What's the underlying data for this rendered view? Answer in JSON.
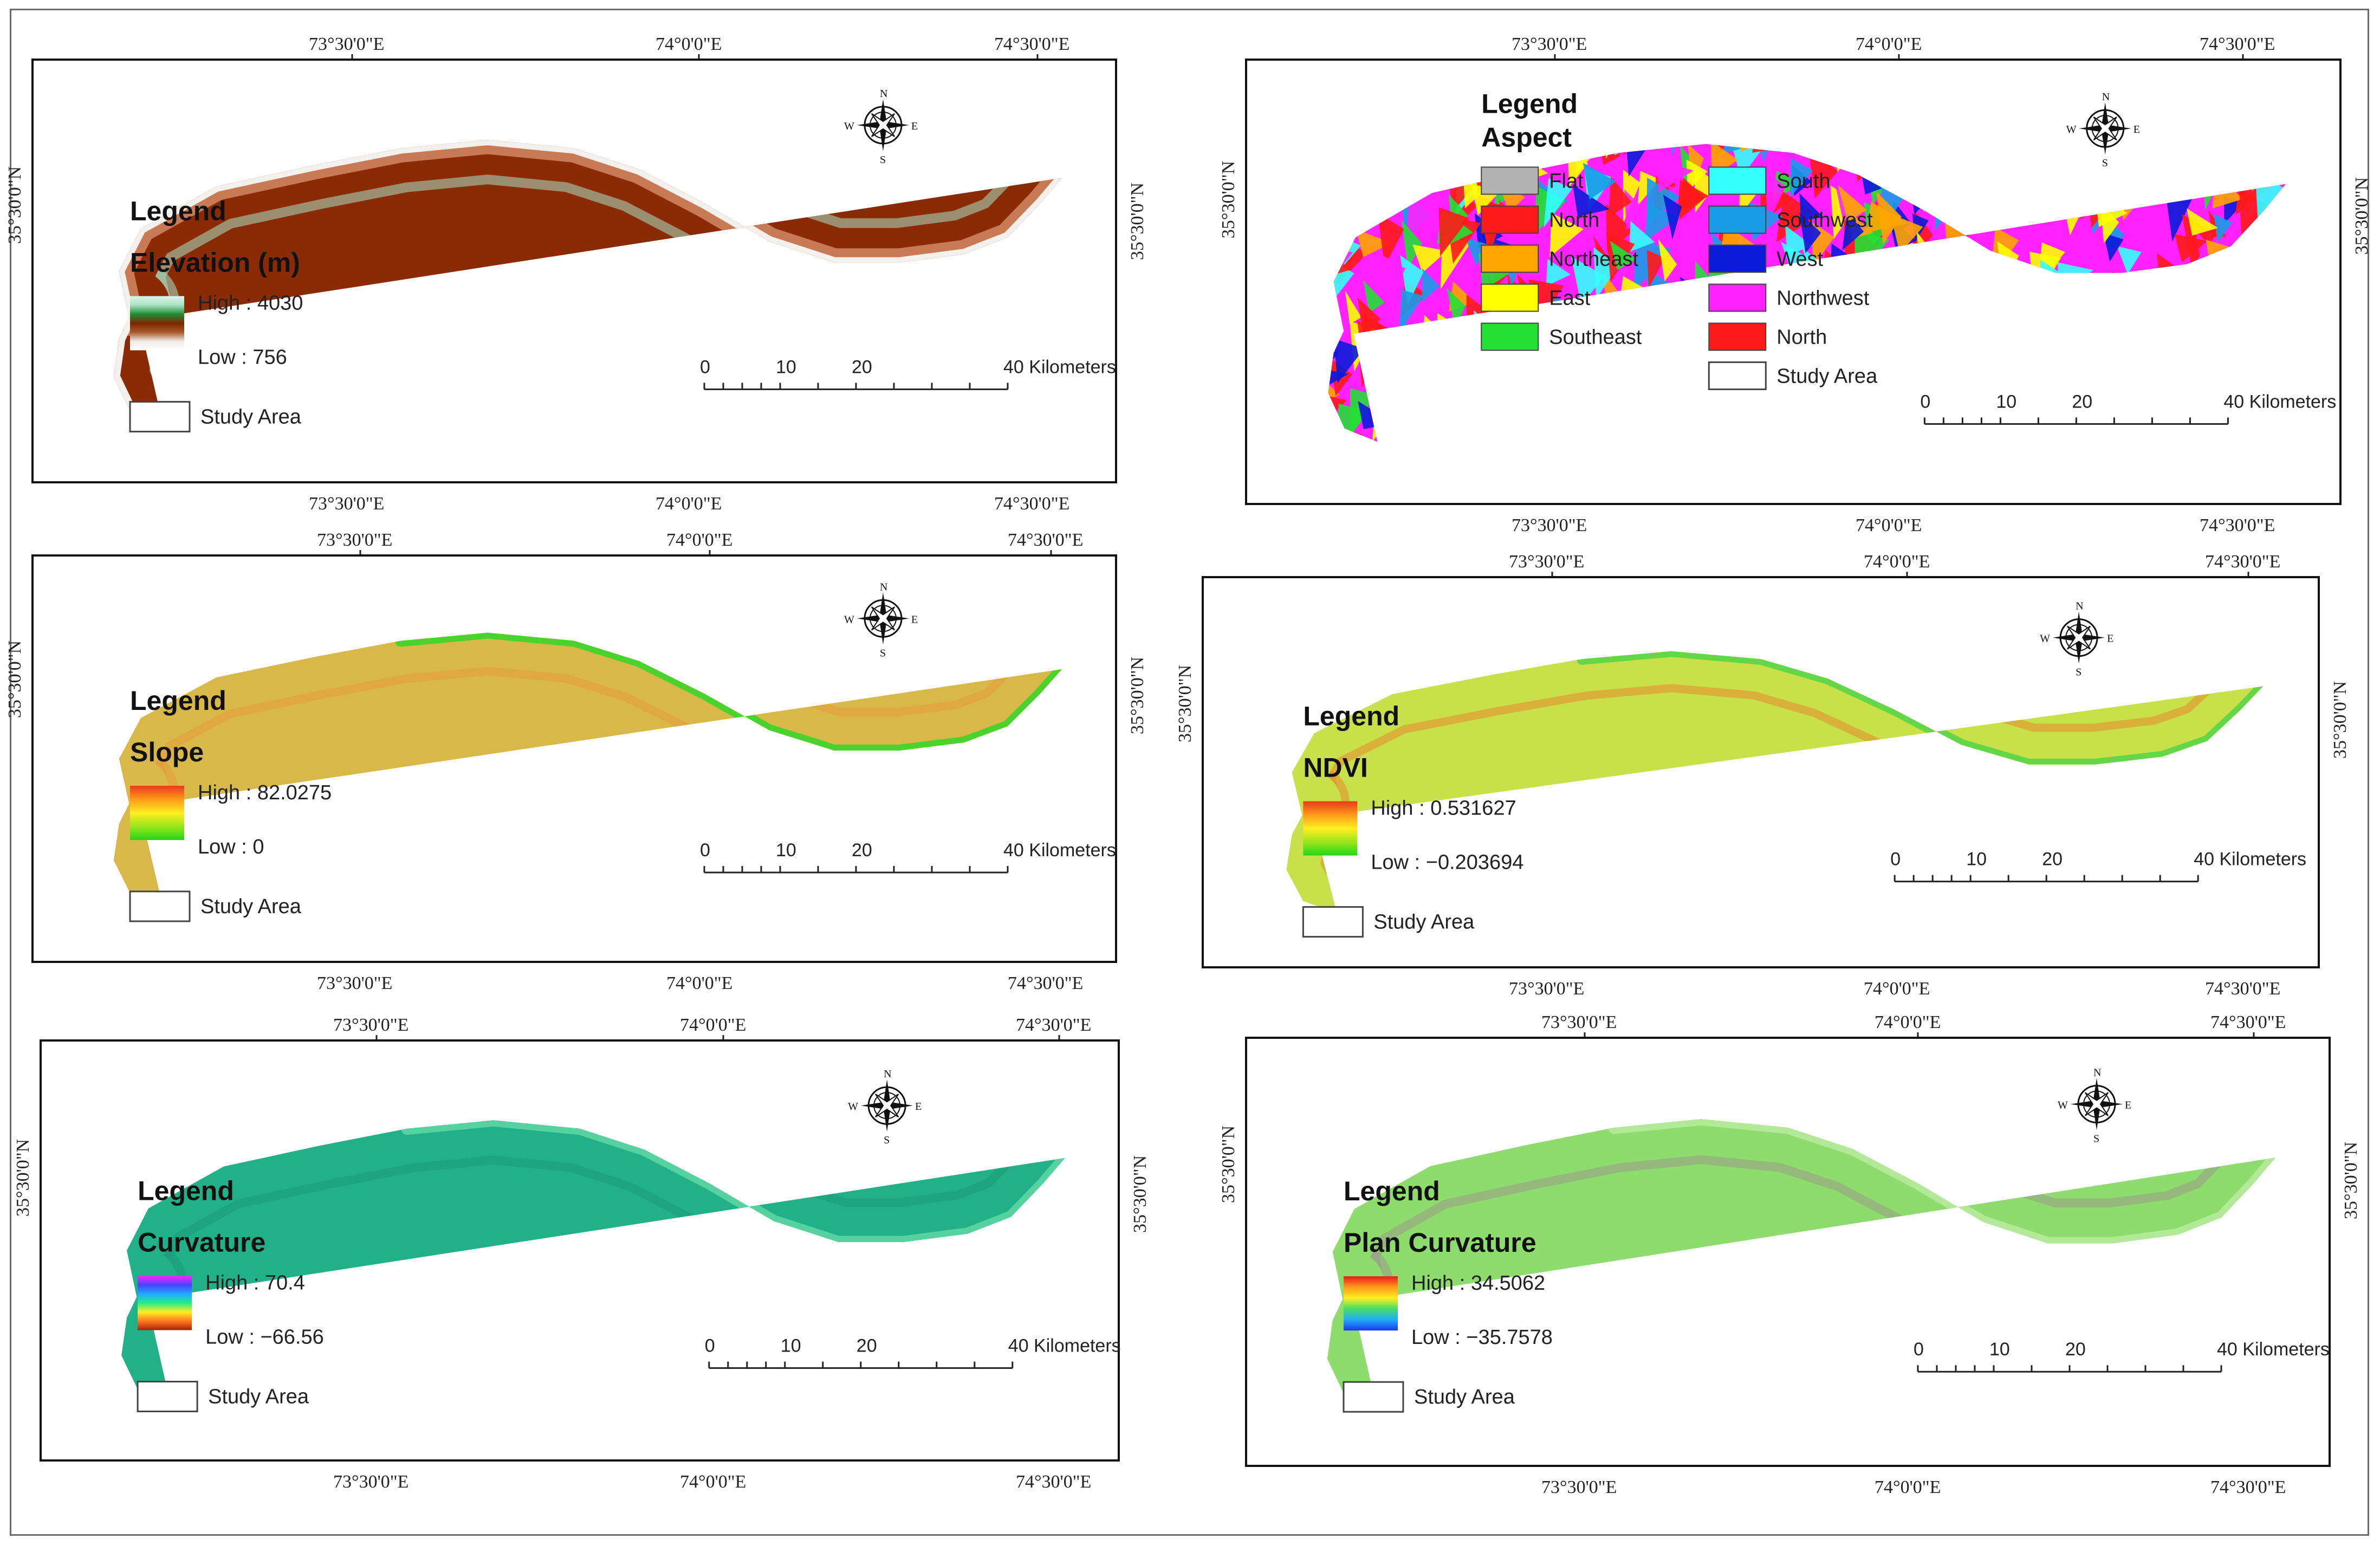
{
  "panels": [
    {
      "id": "elevation",
      "legend_heading": "Legend",
      "layer_name": "Elevation (m)",
      "high_label": "High : 4030",
      "low_label": "Low : 756",
      "study_area_label": "Study Area",
      "ramp_colors": [
        "#dff3ec",
        "#a8e2c4",
        "#1f8c34",
        "#7a2800",
        "#a65a2b",
        "#f0ebe7",
        "#ffffff"
      ],
      "fill": {
        "type": "elevation",
        "base": "#8b2b06",
        "mid": "#c87a55",
        "core": "#f4f0ee",
        "edge": "#a8e2c4"
      }
    },
    {
      "id": "aspect",
      "legend_heading": "Legend",
      "layer_name": "Aspect",
      "aspect_classes": [
        {
          "label": "Flat",
          "color": "#b2b2b2"
        },
        {
          "label": "North",
          "color": "#ff1a1a"
        },
        {
          "label": "Northeast",
          "color": "#ffa500"
        },
        {
          "label": "East",
          "color": "#ffff00"
        },
        {
          "label": "Southeast",
          "color": "#22e034"
        },
        {
          "label": "South",
          "color": "#33ffff"
        },
        {
          "label": "Southwest",
          "color": "#1a9be8"
        },
        {
          "label": "West",
          "color": "#0a1ad8"
        },
        {
          "label": "Northwest",
          "color": "#ff22ff"
        },
        {
          "label": "North",
          "color": "#ff1a1a"
        }
      ],
      "study_area_label": "Study Area",
      "fill": {
        "type": "aspect"
      }
    },
    {
      "id": "slope",
      "legend_heading": "Legend",
      "layer_name": "Slope",
      "high_label": "High : 82.0275",
      "low_label": "Low : 0",
      "study_area_label": "Study Area",
      "ramp_colors": [
        "#e83a1a",
        "#ff9a1a",
        "#ffee22",
        "#9ae61a",
        "#22d61a"
      ],
      "fill": {
        "type": "slope",
        "base": "#d9b84a",
        "edge": "#e69a3a",
        "valley": "#3ad62a"
      }
    },
    {
      "id": "ndvi",
      "legend_heading": "Legend",
      "layer_name": "NDVI",
      "high_label": "High : 0.531627",
      "low_label": "Low : −0.203694",
      "study_area_label": "Study Area",
      "ramp_colors": [
        "#e83a1a",
        "#ff9a1a",
        "#ffee22",
        "#9ae61a",
        "#22d61a"
      ],
      "fill": {
        "type": "ndvi",
        "base": "#c8e04a",
        "edge": "#e88a2a",
        "valley": "#58d648"
      }
    },
    {
      "id": "curvature",
      "legend_heading": "Legend",
      "layer_name": "Curvature",
      "high_label": "High : 70.4",
      "low_label": "Low : −66.56",
      "study_area_label": "Study Area",
      "ramp_colors": [
        "#ff22ff",
        "#4444ff",
        "#22aaff",
        "#22ee88",
        "#ffee22",
        "#ff7722",
        "#aa2200"
      ],
      "fill": {
        "type": "curvature",
        "base": "#22b088",
        "edge": "#1e9a7a",
        "valley": "#5cd6a4"
      }
    },
    {
      "id": "plan-curvature",
      "legend_heading": "Legend",
      "layer_name": "Plan Curvature",
      "high_label": "High : 34.5062",
      "low_label": "Low : −35.7578",
      "study_area_label": "Study Area",
      "ramp_colors": [
        "#e81a1a",
        "#ff9a1a",
        "#ffee22",
        "#44dd66",
        "#22aaff",
        "#1a3ae8"
      ],
      "fill": {
        "type": "plan",
        "base": "#8edb6e",
        "edge": "#9a9a8a",
        "valley": "#b6ea9a"
      }
    }
  ],
  "coordinates": {
    "lon_73_30": "73°30'0\"E",
    "lon_74_00": "74°0'0\"E",
    "lon_74_30": "74°30'0\"E",
    "lat_35_30": "35°30'0\"N"
  },
  "scalebar": {
    "tick_labels": [
      "0",
      "10",
      "20",
      "40 Kilometers"
    ]
  },
  "compass": {
    "n": "N",
    "s": "S",
    "e": "E",
    "w": "W"
  }
}
